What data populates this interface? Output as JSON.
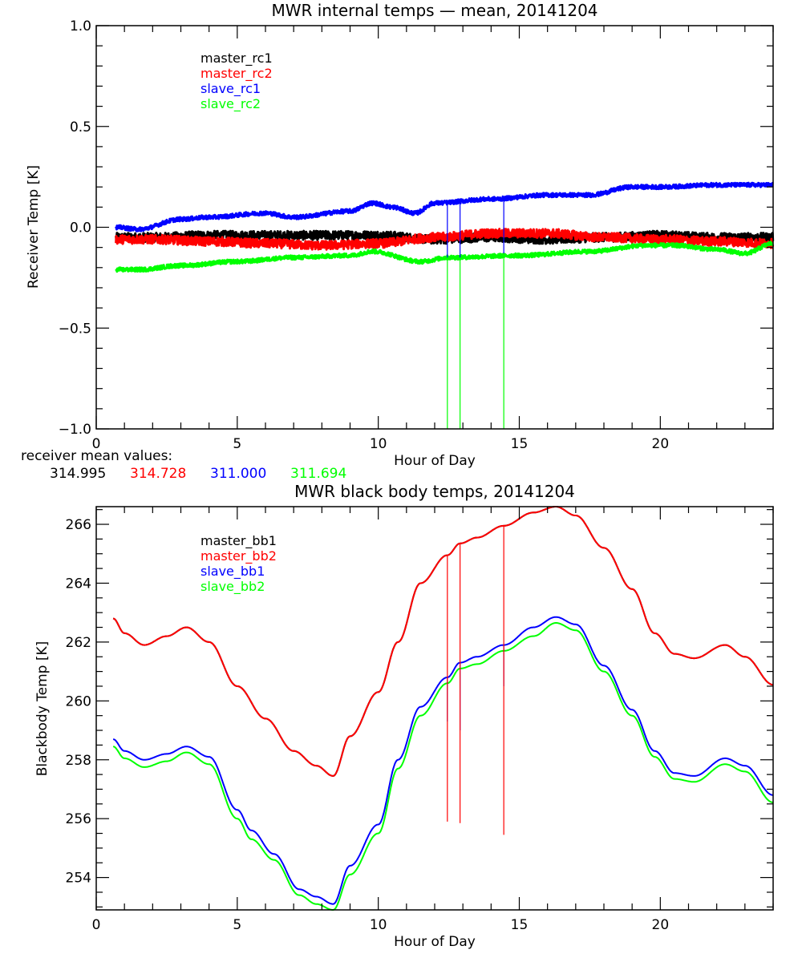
{
  "chart_data": [
    {
      "type": "line",
      "title": "MWR internal temps — mean, 20141204",
      "xlabel": "Hour of Day",
      "ylabel": "Receiver Temp [K]",
      "xlim": [
        0,
        24
      ],
      "ylim": [
        -1.0,
        1.0
      ],
      "xticks": [
        0,
        5,
        10,
        15,
        20
      ],
      "xtick_labels": [
        "0",
        "5",
        "10",
        "15",
        "20"
      ],
      "yticks": [
        1.0,
        0.5,
        0.0,
        -0.5,
        -1.0
      ],
      "ytick_labels": [
        "1.0",
        "0.5",
        "0.0",
        "−0.5",
        "−1.0"
      ],
      "grid": false,
      "legend_position": "top-left",
      "noise": true,
      "series": [
        {
          "name": "master_rc1",
          "color": "#000000",
          "x": [
            0.7,
            2,
            4,
            6,
            8,
            10,
            12,
            14,
            16,
            18,
            20,
            22,
            24
          ],
          "y": [
            -0.05,
            -0.05,
            -0.04,
            -0.04,
            -0.04,
            -0.04,
            -0.06,
            -0.05,
            -0.06,
            -0.05,
            -0.04,
            -0.05,
            -0.05
          ]
        },
        {
          "name": "master_rc2",
          "color": "#ff0000",
          "x": [
            0.7,
            2,
            4,
            6,
            8,
            10,
            12,
            14,
            16,
            18,
            20,
            22,
            24
          ],
          "y": [
            -0.06,
            -0.06,
            -0.07,
            -0.08,
            -0.09,
            -0.08,
            -0.05,
            -0.03,
            -0.03,
            -0.05,
            -0.06,
            -0.07,
            -0.08
          ]
        },
        {
          "name": "slave_rc1",
          "color": "#0000ff",
          "x": [
            0.7,
            1.5,
            3,
            4,
            6,
            7,
            9,
            9.8,
            10.5,
            11.3,
            12,
            14,
            16,
            17.5,
            19,
            20,
            22,
            24
          ],
          "y": [
            0.0,
            -0.01,
            0.04,
            0.05,
            0.07,
            0.05,
            0.08,
            0.12,
            0.1,
            0.07,
            0.12,
            0.14,
            0.16,
            0.16,
            0.2,
            0.2,
            0.21,
            0.21
          ]
        },
        {
          "name": "slave_rc2",
          "color": "#00ff00",
          "x": [
            0.7,
            1.5,
            3,
            5,
            7,
            9,
            9.8,
            11.5,
            12.5,
            15,
            17.5,
            19.5,
            20.5,
            22,
            23,
            24
          ],
          "y": [
            -0.21,
            -0.21,
            -0.19,
            -0.17,
            -0.15,
            -0.14,
            -0.12,
            -0.17,
            -0.15,
            -0.14,
            -0.12,
            -0.09,
            -0.09,
            -0.11,
            -0.13,
            -0.08
          ]
        }
      ],
      "spikes": [
        {
          "x": 12.45,
          "series": "slave_rc1",
          "y_from": 0.11,
          "y_to": -0.15
        },
        {
          "x": 12.9,
          "series": "slave_rc1",
          "y_from": 0.12,
          "y_to": -0.15
        },
        {
          "x": 14.45,
          "series": "slave_rc1",
          "y_from": 0.14,
          "y_to": -0.13
        },
        {
          "x": 12.45,
          "series": "slave_rc2",
          "y_from": -0.15,
          "y_to": -1.0
        },
        {
          "x": 12.9,
          "series": "slave_rc2",
          "y_from": -0.15,
          "y_to": -1.0
        },
        {
          "x": 14.45,
          "series": "slave_rc2",
          "y_from": -0.13,
          "y_to": -1.0
        }
      ]
    },
    {
      "type": "line",
      "title": "MWR black body temps, 20141204",
      "xlabel": "Hour of Day",
      "ylabel": "Blackbody Temp [K]",
      "xlim": [
        0,
        24
      ],
      "ylim": [
        252.9,
        266.6
      ],
      "xticks": [
        0,
        5,
        10,
        15,
        20
      ],
      "xtick_labels": [
        "0",
        "5",
        "10",
        "15",
        "20"
      ],
      "yticks": [
        254,
        256,
        258,
        260,
        262,
        264,
        266
      ],
      "ytick_labels": [
        "254",
        "256",
        "258",
        "260",
        "262",
        "264",
        "266"
      ],
      "grid": false,
      "legend_position": "top-left",
      "noise": false,
      "series": [
        {
          "name": "master_bb1",
          "color": "#000000",
          "x": [
            0.6,
            1.0,
            1.7,
            2.5,
            3.2,
            4.0,
            5.0,
            6.0,
            7.0,
            7.8,
            8.4,
            9.0,
            10.0,
            10.7,
            11.5,
            12.45,
            12.9,
            13.5,
            14.45,
            15.5,
            16.3,
            17.0,
            18.0,
            19.0,
            19.8,
            20.5,
            21.2,
            22.3,
            23.0,
            24.0
          ],
          "y": [
            262.8,
            262.3,
            261.9,
            262.2,
            262.5,
            262.0,
            260.5,
            259.4,
            258.3,
            257.8,
            257.45,
            258.8,
            260.3,
            262.0,
            264.0,
            264.95,
            265.35,
            265.55,
            265.95,
            266.4,
            266.6,
            266.3,
            265.2,
            263.8,
            262.3,
            261.6,
            261.45,
            261.9,
            261.5,
            260.55
          ]
        },
        {
          "name": "master_bb2",
          "color": "#ff0000",
          "x": [
            0.6,
            1.0,
            1.7,
            2.5,
            3.2,
            4.0,
            5.0,
            6.0,
            7.0,
            7.8,
            8.4,
            9.0,
            10.0,
            10.7,
            11.5,
            12.45,
            12.9,
            13.5,
            14.45,
            15.5,
            16.3,
            17.0,
            18.0,
            19.0,
            19.8,
            20.5,
            21.2,
            22.3,
            23.0,
            24.0
          ],
          "y": [
            262.8,
            262.3,
            261.9,
            262.2,
            262.5,
            262.0,
            260.5,
            259.4,
            258.3,
            257.8,
            257.45,
            258.8,
            260.3,
            262.0,
            264.0,
            264.95,
            265.35,
            265.55,
            265.95,
            266.4,
            266.6,
            266.3,
            265.2,
            263.8,
            262.3,
            261.6,
            261.45,
            261.9,
            261.5,
            260.55
          ]
        },
        {
          "name": "slave_bb1",
          "color": "#0000ff",
          "x": [
            0.6,
            1.0,
            1.7,
            2.5,
            3.2,
            4.0,
            5.0,
            5.5,
            6.3,
            7.2,
            7.8,
            8.4,
            9.0,
            10.0,
            10.7,
            11.5,
            12.45,
            12.9,
            13.5,
            14.45,
            15.5,
            16.3,
            17.0,
            18.0,
            19.0,
            19.8,
            20.5,
            21.2,
            22.3,
            23.0,
            24.0
          ],
          "y": [
            258.7,
            258.3,
            258.0,
            258.2,
            258.45,
            258.1,
            256.3,
            255.6,
            254.8,
            253.6,
            253.35,
            253.1,
            254.4,
            255.8,
            258.0,
            259.8,
            260.8,
            261.3,
            261.5,
            261.9,
            262.5,
            262.85,
            262.6,
            261.2,
            259.7,
            258.3,
            257.55,
            257.45,
            258.05,
            257.8,
            256.8
          ]
        },
        {
          "name": "slave_bb2",
          "color": "#00ff00",
          "x": [
            0.6,
            1.0,
            1.7,
            2.5,
            3.2,
            4.0,
            5.0,
            5.5,
            6.3,
            7.2,
            7.8,
            8.4,
            9.0,
            10.0,
            10.7,
            11.5,
            12.45,
            12.9,
            13.5,
            14.45,
            15.5,
            16.3,
            17.0,
            18.0,
            19.0,
            19.8,
            20.5,
            21.2,
            22.3,
            23.0,
            24.0
          ],
          "y": [
            258.45,
            258.05,
            257.75,
            257.95,
            258.25,
            257.85,
            256.0,
            255.3,
            254.6,
            253.4,
            253.1,
            252.9,
            254.1,
            255.5,
            257.7,
            259.5,
            260.6,
            261.1,
            261.25,
            261.7,
            262.2,
            262.65,
            262.4,
            261.0,
            259.5,
            258.1,
            257.35,
            257.25,
            257.85,
            257.6,
            256.55
          ]
        }
      ],
      "spikes": [
        {
          "x": 12.45,
          "series": "slave_bb1",
          "y_from": 260.8,
          "y_to": 259.3
        },
        {
          "x": 12.9,
          "series": "slave_bb1",
          "y_from": 261.3,
          "y_to": 259.0
        },
        {
          "x": 14.45,
          "series": "slave_bb1",
          "y_from": 261.9,
          "y_to": 260.5
        },
        {
          "x": 12.45,
          "series": "master_bb2",
          "y_from": 264.95,
          "y_to": 255.9
        },
        {
          "x": 12.9,
          "series": "master_bb2",
          "y_from": 265.35,
          "y_to": 255.85
        },
        {
          "x": 14.45,
          "series": "master_bb2",
          "y_from": 265.95,
          "y_to": 255.45
        }
      ]
    }
  ],
  "receiver_means": {
    "label": "receiver mean values:",
    "values": [
      {
        "text": "314.995",
        "color": "#000000"
      },
      {
        "text": "314.728",
        "color": "#ff0000"
      },
      {
        "text": "311.000",
        "color": "#0000ff"
      },
      {
        "text": "311.694",
        "color": "#00ff00"
      }
    ]
  }
}
